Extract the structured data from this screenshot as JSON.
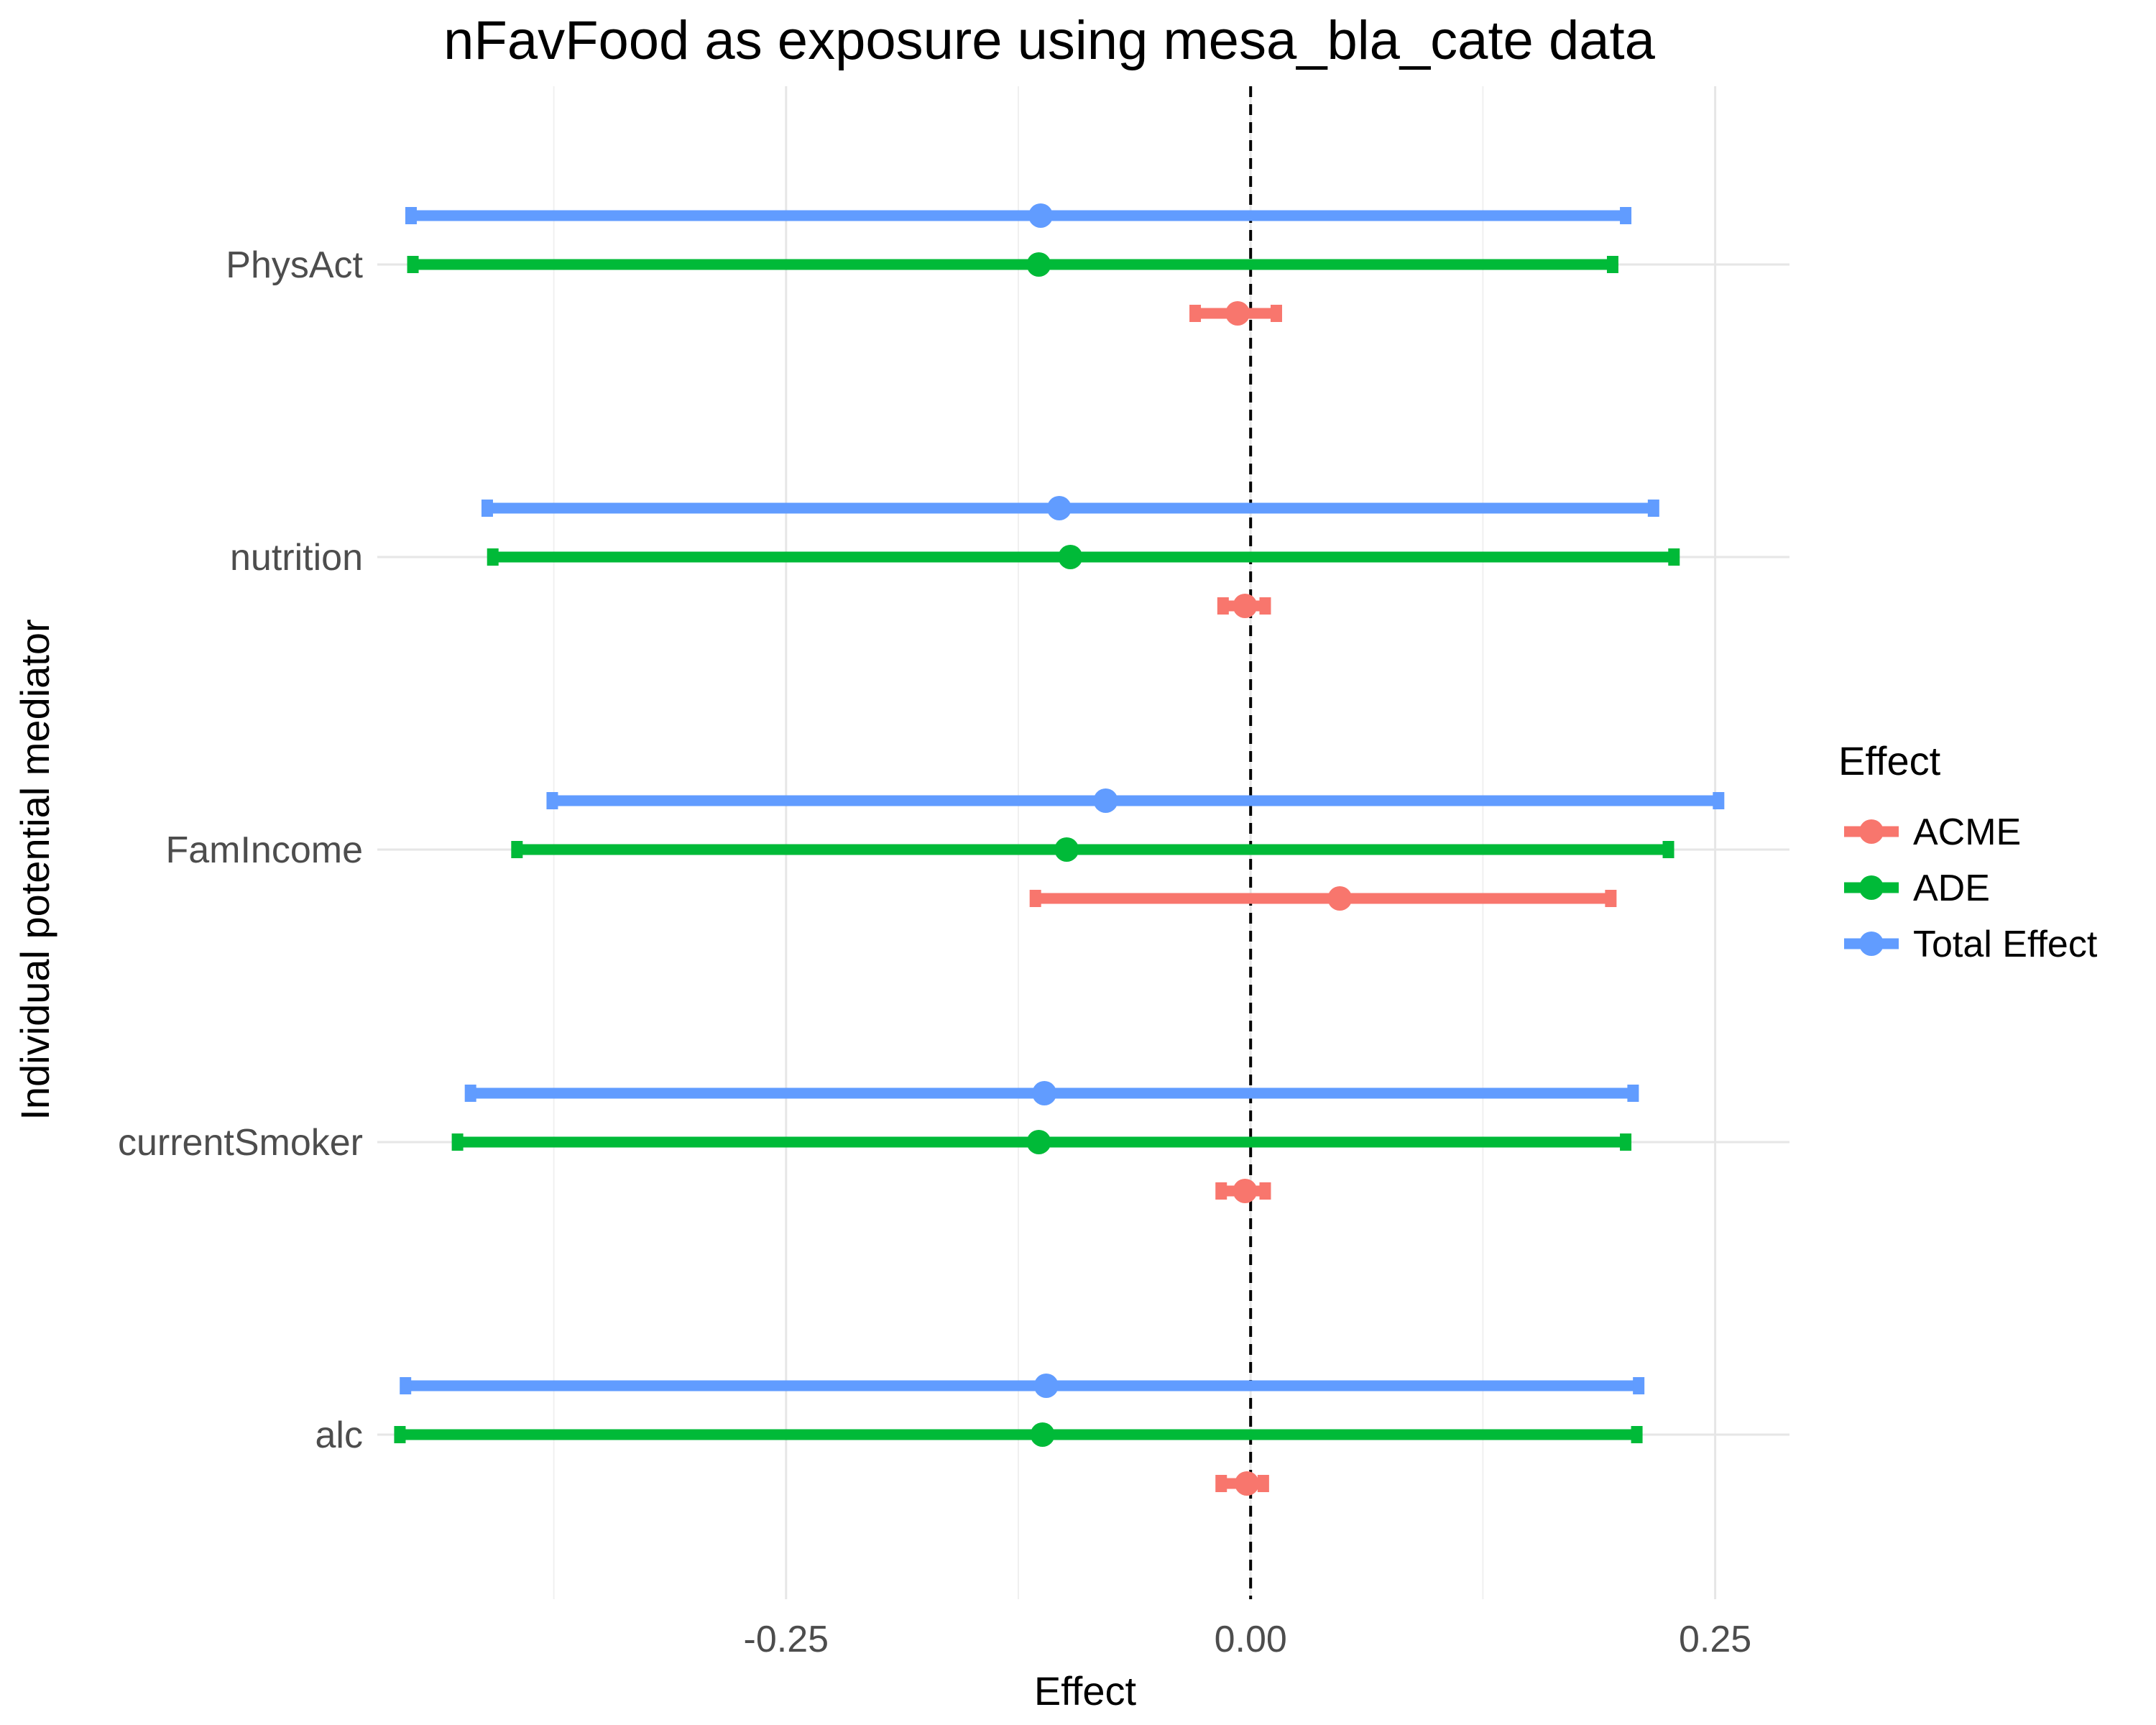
{
  "chart_data": {
    "type": "forest-interval",
    "title": "nFavFood as exposure using mesa_bla_cate data",
    "xlabel": "Effect",
    "ylabel": "Individual potential mediator",
    "xlim": [
      -0.47,
      0.29
    ],
    "x_ticks": [
      -0.25,
      0.0,
      0.25
    ],
    "x_tick_labels": [
      "-0.25",
      "0.00",
      "0.25"
    ],
    "reference_line_x": 0.0,
    "grid": true,
    "categories": [
      "PhysAct",
      "nutrition",
      "FamIncome",
      "currentSmoker",
      "alc"
    ],
    "legend": {
      "title": "Effect",
      "placement": "right"
    },
    "series": [
      {
        "name": "ACME",
        "color": "#F8766D",
        "estimates": [
          -0.007,
          -0.003,
          0.048,
          -0.003,
          -0.002
        ],
        "lower": [
          -0.031,
          -0.016,
          -0.117,
          -0.017,
          -0.017
        ],
        "upper": [
          0.015,
          0.009,
          0.195,
          0.009,
          0.008
        ]
      },
      {
        "name": "ADE",
        "color": "#00BA38",
        "estimates": [
          -0.114,
          -0.097,
          -0.099,
          -0.114,
          -0.112
        ],
        "lower": [
          -0.452,
          -0.409,
          -0.396,
          -0.428,
          -0.459
        ],
        "upper": [
          0.196,
          0.229,
          0.226,
          0.203,
          0.209
        ]
      },
      {
        "name": "Total Effect",
        "color": "#619CFF",
        "estimates": [
          -0.113,
          -0.103,
          -0.078,
          -0.111,
          -0.11
        ],
        "lower": [
          -0.453,
          -0.412,
          -0.377,
          -0.421,
          -0.456
        ],
        "upper": [
          0.203,
          0.218,
          0.253,
          0.207,
          0.21
        ]
      }
    ]
  }
}
